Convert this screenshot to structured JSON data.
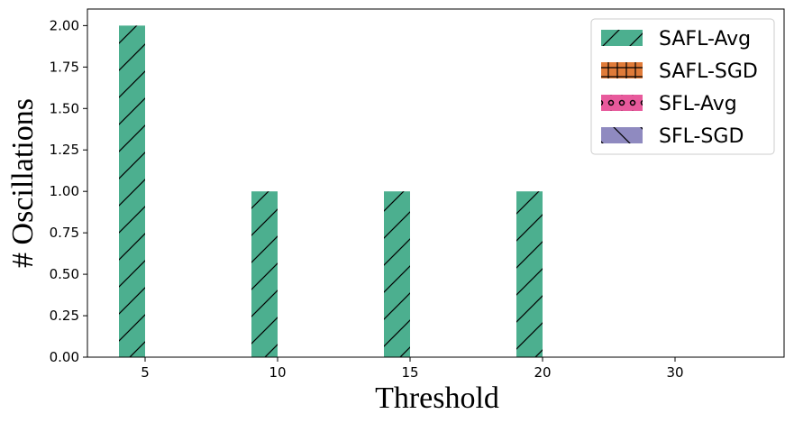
{
  "chart_data": {
    "type": "bar",
    "categories": [
      "5",
      "10",
      "15",
      "20",
      "30"
    ],
    "series": [
      {
        "name": "SAFL-Avg",
        "values": [
          2,
          1,
          1,
          1,
          0
        ],
        "color": "#4caf8f",
        "hatch": "forward-slash"
      },
      {
        "name": "SAFL-SGD",
        "values": [
          0,
          0,
          0,
          0,
          0
        ],
        "color": "#e07b39",
        "hatch": "plus"
      },
      {
        "name": "SFL-Avg",
        "values": [
          0,
          0,
          0,
          0,
          0
        ],
        "color": "#e85a9c",
        "hatch": "circles"
      },
      {
        "name": "SFL-SGD",
        "values": [
          0,
          0,
          0,
          0,
          0
        ],
        "color": "#8f8ac0",
        "hatch": "back-slash"
      }
    ],
    "xlabel": "Threshold",
    "ylabel": "# Oscillations",
    "ylim": [
      0,
      2.1
    ],
    "yticks": [
      "0.00",
      "0.25",
      "0.50",
      "0.75",
      "1.00",
      "1.25",
      "1.50",
      "1.75",
      "2.00"
    ],
    "legend": "top-right",
    "grid": false
  }
}
